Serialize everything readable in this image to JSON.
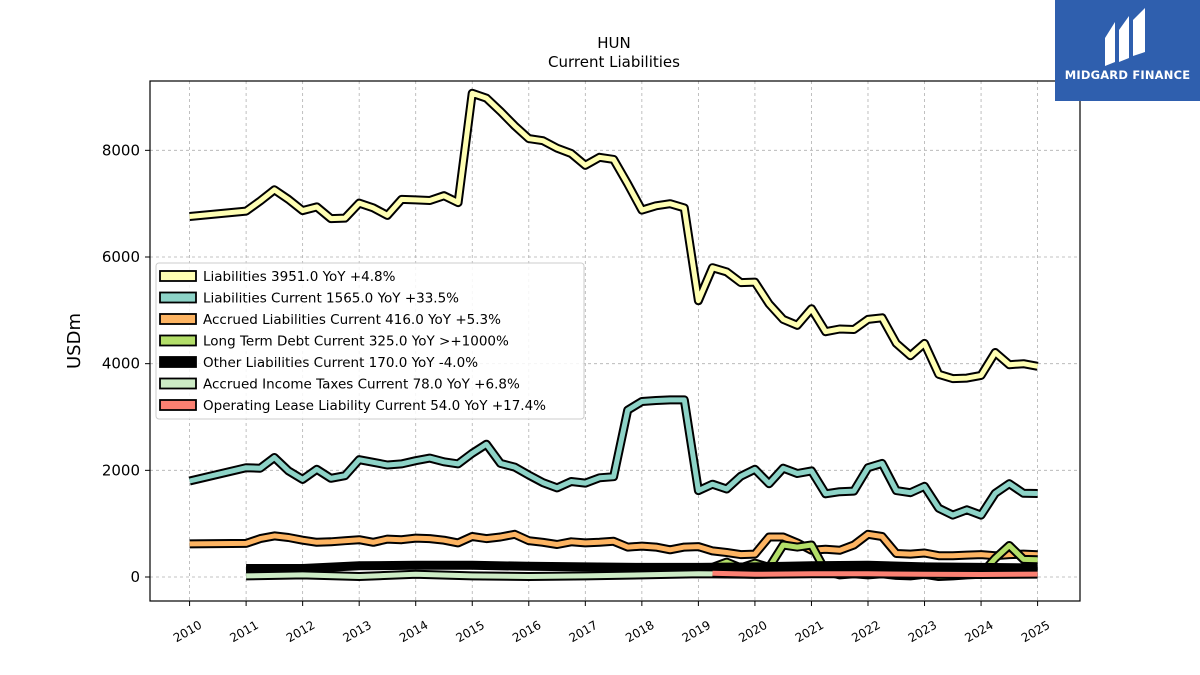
{
  "chart_data": {
    "type": "line",
    "title": "HUN",
    "subtitle": "Current  Liabilities",
    "ylabel": "USDm",
    "xlabel": "",
    "ylim": [
      -450,
      9300
    ],
    "xlim": [
      2009.3,
      2025.75
    ],
    "yticks": [
      0,
      2000,
      4000,
      6000,
      8000
    ],
    "xticks": [
      "2010",
      "2011",
      "2012",
      "2013",
      "2014",
      "2015",
      "2016",
      "2017",
      "2018",
      "2019",
      "2020",
      "2021",
      "2022",
      "2023",
      "2024",
      "2025"
    ],
    "grid": true,
    "legend_position": "center-left",
    "series": [
      {
        "name": "Liabilities  3951.0 YoY +4.8%",
        "color": "#ffffb3",
        "points": [
          [
            2010,
            6760
          ],
          [
            2011,
            6860
          ],
          [
            2011.25,
            7050
          ],
          [
            2011.5,
            7260
          ],
          [
            2011.75,
            7080
          ],
          [
            2012,
            6870
          ],
          [
            2012.25,
            6940
          ],
          [
            2012.5,
            6720
          ],
          [
            2012.75,
            6730
          ],
          [
            2013,
            7010
          ],
          [
            2013.25,
            6920
          ],
          [
            2013.5,
            6780
          ],
          [
            2013.75,
            7080
          ],
          [
            2014,
            7070
          ],
          [
            2014.25,
            7060
          ],
          [
            2014.5,
            7150
          ],
          [
            2014.75,
            7020
          ],
          [
            2015,
            9070
          ],
          [
            2015.25,
            8980
          ],
          [
            2015.5,
            8730
          ],
          [
            2015.75,
            8460
          ],
          [
            2016,
            8220
          ],
          [
            2016.25,
            8180
          ],
          [
            2016.5,
            8040
          ],
          [
            2016.75,
            7940
          ],
          [
            2017,
            7720
          ],
          [
            2017.25,
            7870
          ],
          [
            2017.5,
            7830
          ],
          [
            2017.75,
            7370
          ],
          [
            2018,
            6880
          ],
          [
            2018.25,
            6960
          ],
          [
            2018.5,
            7000
          ],
          [
            2018.75,
            6920
          ],
          [
            2019,
            5180
          ],
          [
            2019.25,
            5800
          ],
          [
            2019.5,
            5720
          ],
          [
            2019.75,
            5520
          ],
          [
            2020,
            5530
          ],
          [
            2020.25,
            5120
          ],
          [
            2020.5,
            4830
          ],
          [
            2020.75,
            4720
          ],
          [
            2021,
            5030
          ],
          [
            2021.25,
            4600
          ],
          [
            2021.5,
            4650
          ],
          [
            2021.75,
            4640
          ],
          [
            2022,
            4830
          ],
          [
            2022.25,
            4860
          ],
          [
            2022.5,
            4380
          ],
          [
            2022.75,
            4150
          ],
          [
            2023,
            4380
          ],
          [
            2023.25,
            3800
          ],
          [
            2023.5,
            3720
          ],
          [
            2023.75,
            3730
          ],
          [
            2024,
            3780
          ],
          [
            2024.25,
            4210
          ],
          [
            2024.5,
            3980
          ],
          [
            2024.75,
            4000
          ],
          [
            2025,
            3951
          ]
        ]
      },
      {
        "name": "Liabilities Current  1565.0 YoY +33.5%",
        "color": "#8dd3c7",
        "points": [
          [
            2010,
            1800
          ],
          [
            2011,
            2050
          ],
          [
            2011.25,
            2040
          ],
          [
            2011.5,
            2240
          ],
          [
            2011.75,
            1990
          ],
          [
            2012,
            1830
          ],
          [
            2012.25,
            2020
          ],
          [
            2012.5,
            1850
          ],
          [
            2012.75,
            1900
          ],
          [
            2013,
            2200
          ],
          [
            2013.25,
            2150
          ],
          [
            2013.5,
            2100
          ],
          [
            2013.75,
            2120
          ],
          [
            2014,
            2180
          ],
          [
            2014.25,
            2230
          ],
          [
            2014.5,
            2160
          ],
          [
            2014.75,
            2120
          ],
          [
            2015,
            2320
          ],
          [
            2015.25,
            2490
          ],
          [
            2015.5,
            2130
          ],
          [
            2015.75,
            2060
          ],
          [
            2016,
            1910
          ],
          [
            2016.25,
            1770
          ],
          [
            2016.5,
            1670
          ],
          [
            2016.75,
            1790
          ],
          [
            2017,
            1760
          ],
          [
            2017.25,
            1860
          ],
          [
            2017.5,
            1880
          ],
          [
            2017.75,
            3130
          ],
          [
            2018,
            3290
          ],
          [
            2018.25,
            3310
          ],
          [
            2018.5,
            3320
          ],
          [
            2018.75,
            3320
          ],
          [
            2019,
            1620
          ],
          [
            2019.25,
            1740
          ],
          [
            2019.5,
            1650
          ],
          [
            2019.75,
            1890
          ],
          [
            2020,
            2020
          ],
          [
            2020.25,
            1750
          ],
          [
            2020.5,
            2040
          ],
          [
            2020.75,
            1940
          ],
          [
            2021,
            1990
          ],
          [
            2021.25,
            1560
          ],
          [
            2021.5,
            1600
          ],
          [
            2021.75,
            1610
          ],
          [
            2022,
            2050
          ],
          [
            2022.25,
            2130
          ],
          [
            2022.5,
            1620
          ],
          [
            2022.75,
            1580
          ],
          [
            2023,
            1700
          ],
          [
            2023.25,
            1290
          ],
          [
            2023.5,
            1160
          ],
          [
            2023.75,
            1260
          ],
          [
            2024,
            1160
          ],
          [
            2024.25,
            1570
          ],
          [
            2024.5,
            1750
          ],
          [
            2024.75,
            1570
          ],
          [
            2025,
            1565
          ]
        ]
      },
      {
        "name": "Accrued Liabilities Current  416.0 YoY +5.3%",
        "color": "#fdb462",
        "points": [
          [
            2010,
            620
          ],
          [
            2011,
            630
          ],
          [
            2011.25,
            720
          ],
          [
            2011.5,
            770
          ],
          [
            2011.75,
            740
          ],
          [
            2012,
            690
          ],
          [
            2012.25,
            650
          ],
          [
            2012.5,
            660
          ],
          [
            2012.75,
            680
          ],
          [
            2013,
            700
          ],
          [
            2013.25,
            650
          ],
          [
            2013.5,
            710
          ],
          [
            2013.75,
            700
          ],
          [
            2014,
            730
          ],
          [
            2014.25,
            720
          ],
          [
            2014.5,
            690
          ],
          [
            2014.75,
            640
          ],
          [
            2015,
            760
          ],
          [
            2015.25,
            720
          ],
          [
            2015.5,
            750
          ],
          [
            2015.75,
            800
          ],
          [
            2016,
            680
          ],
          [
            2016.25,
            650
          ],
          [
            2016.5,
            610
          ],
          [
            2016.75,
            660
          ],
          [
            2017,
            640
          ],
          [
            2017.25,
            650
          ],
          [
            2017.5,
            670
          ],
          [
            2017.75,
            560
          ],
          [
            2018,
            580
          ],
          [
            2018.25,
            560
          ],
          [
            2018.5,
            510
          ],
          [
            2018.75,
            560
          ],
          [
            2019,
            570
          ],
          [
            2019.25,
            490
          ],
          [
            2019.5,
            460
          ],
          [
            2019.75,
            420
          ],
          [
            2020,
            430
          ],
          [
            2020.25,
            750
          ],
          [
            2020.5,
            750
          ],
          [
            2020.75,
            640
          ],
          [
            2021,
            500
          ],
          [
            2021.25,
            520
          ],
          [
            2021.5,
            500
          ],
          [
            2021.75,
            600
          ],
          [
            2022,
            800
          ],
          [
            2022.25,
            760
          ],
          [
            2022.5,
            440
          ],
          [
            2022.75,
            430
          ],
          [
            2023,
            450
          ],
          [
            2023.25,
            400
          ],
          [
            2023.5,
            400
          ],
          [
            2023.75,
            410
          ],
          [
            2024,
            420
          ],
          [
            2024.25,
            400
          ],
          [
            2024.5,
            420
          ],
          [
            2024.75,
            430
          ],
          [
            2025,
            416
          ]
        ]
      },
      {
        "name": "Long Term Debt Current  325.0 YoY >+1000%",
        "color": "#b3de69",
        "points": [
          [
            2019.25,
            180
          ],
          [
            2019.5,
            280
          ],
          [
            2019.75,
            170
          ],
          [
            2020,
            260
          ],
          [
            2020.25,
            180
          ],
          [
            2020.5,
            600
          ],
          [
            2020.75,
            560
          ],
          [
            2021,
            600
          ],
          [
            2021.25,
            110
          ],
          [
            2021.5,
            40
          ],
          [
            2021.75,
            60
          ],
          [
            2022,
            40
          ],
          [
            2022.25,
            60
          ],
          [
            2022.5,
            30
          ],
          [
            2022.75,
            20
          ],
          [
            2023,
            50
          ],
          [
            2023.25,
            10
          ],
          [
            2023.5,
            20
          ],
          [
            2023.75,
            40
          ],
          [
            2024,
            50
          ],
          [
            2024.25,
            350
          ],
          [
            2024.5,
            590
          ],
          [
            2024.75,
            330
          ],
          [
            2025,
            325
          ]
        ]
      },
      {
        "name": "Other Liabilities Current  170.0 YoY -4.0%",
        "color": "#000000",
        "points": [
          [
            2011,
            160
          ],
          [
            2012,
            160
          ],
          [
            2013,
            210
          ],
          [
            2014,
            220
          ],
          [
            2015,
            220
          ],
          [
            2016,
            200
          ],
          [
            2017,
            190
          ],
          [
            2018,
            180
          ],
          [
            2019,
            180
          ],
          [
            2020,
            190
          ],
          [
            2021,
            210
          ],
          [
            2022,
            220
          ],
          [
            2023,
            190
          ],
          [
            2024,
            180
          ],
          [
            2025,
            170
          ]
        ]
      },
      {
        "name": "Accrued Income Taxes Current  78.0 YoY +6.8%",
        "color": "#ccebc5",
        "points": [
          [
            2011,
            20
          ],
          [
            2012,
            40
          ],
          [
            2013,
            10
          ],
          [
            2014,
            50
          ],
          [
            2015,
            20
          ],
          [
            2016,
            10
          ],
          [
            2017,
            20
          ],
          [
            2018,
            40
          ],
          [
            2019,
            60
          ],
          [
            2020,
            50
          ],
          [
            2021,
            70
          ],
          [
            2022,
            80
          ],
          [
            2023,
            60
          ],
          [
            2024,
            70
          ],
          [
            2025,
            78
          ]
        ]
      },
      {
        "name": "Operating Lease Liability Current  54.0 YoY +17.4%",
        "color": "#fb8072",
        "points": [
          [
            2019.25,
            70
          ],
          [
            2020,
            50
          ],
          [
            2021,
            60
          ],
          [
            2022,
            60
          ],
          [
            2023,
            50
          ],
          [
            2024,
            46
          ],
          [
            2025,
            54
          ]
        ]
      }
    ]
  },
  "logo": {
    "text": "MIDGARD FINANCE"
  }
}
